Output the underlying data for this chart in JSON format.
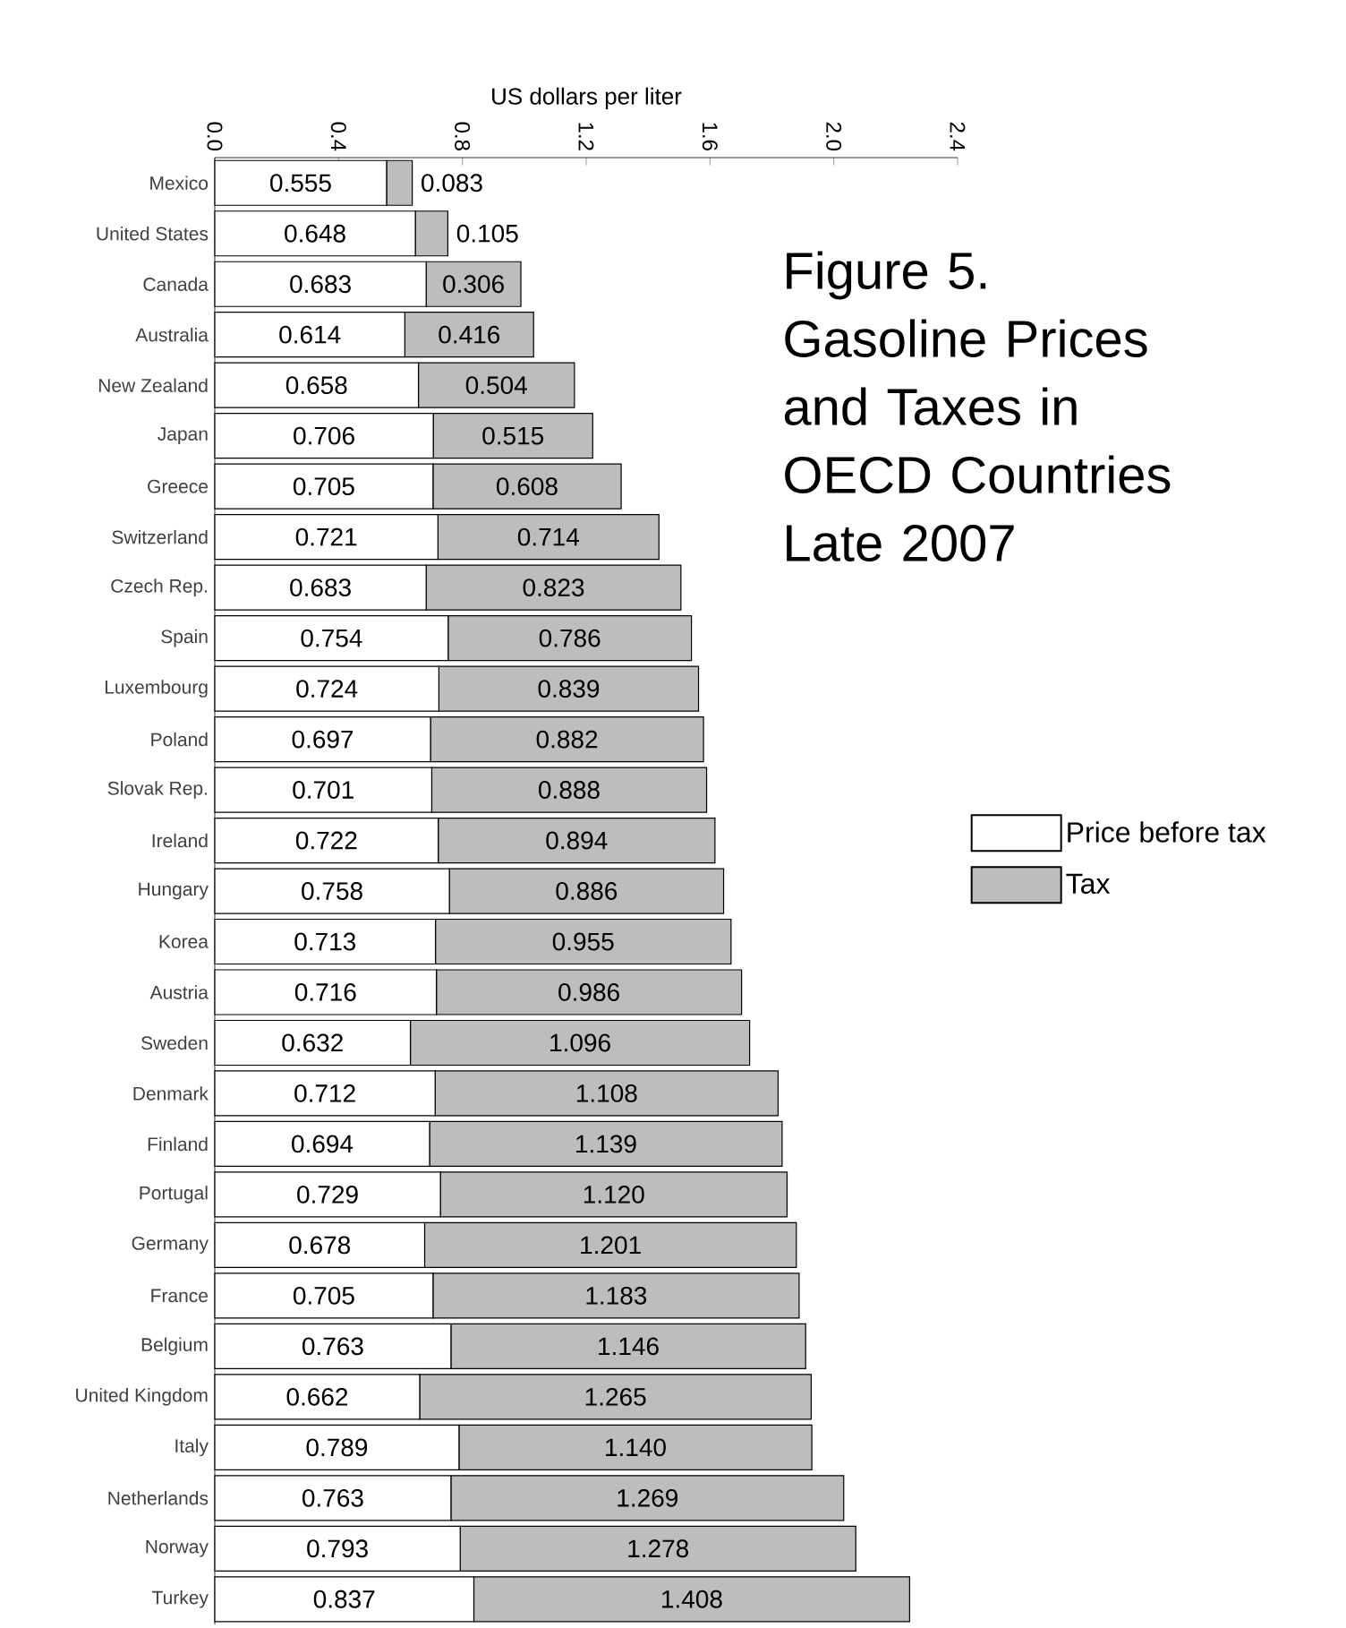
{
  "chart_data": {
    "type": "bar",
    "orientation": "horizontal",
    "stacked": true,
    "legend": "right",
    "title": "Figure 5.",
    "subtitle": "Gasoline Prices and Taxes in OECD Countries Late 2007",
    "xlabel": "US dollars per liter",
    "categories": [
      "Mexico",
      "United States",
      "Canada",
      "Australia",
      "New Zealand",
      "Japan",
      "Greece",
      "Switzerland",
      "Czech Rep.",
      "Spain",
      "Luxembourg",
      "Poland",
      "Slovak Rep.",
      "Ireland",
      "Hungary",
      "Korea",
      "Austria",
      "Sweden",
      "Denmark",
      "Finland",
      "Portugal",
      "Germany",
      "France",
      "Belgium",
      "United Kingdom",
      "Italy",
      "Netherlands",
      "Norway",
      "Turkey"
    ],
    "xlim": [
      0,
      2.4
    ],
    "xticks": [
      {
        "value": 0,
        "label": "0.0"
      },
      0.4,
      0.8,
      1.2,
      1.6,
      {
        "value": 2,
        "label": "2.0"
      },
      2.4
    ],
    "series": [
      {
        "name": "Price before tax",
        "color": "#ffffff",
        "values": [
          0.555,
          0.648,
          0.683,
          0.614,
          0.658,
          0.706,
          0.705,
          0.721,
          0.683,
          0.754,
          0.724,
          0.697,
          0.701,
          0.722,
          0.758,
          0.713,
          0.716,
          0.632,
          0.712,
          0.694,
          0.729,
          0.678,
          0.705,
          0.763,
          0.662,
          0.789,
          0.763,
          0.793,
          0.837
        ],
        "value_labels": [
          "0.555",
          "0.648",
          "0.683",
          "0.614",
          "0.658",
          "0.706",
          "0.705",
          "0.721",
          "0.683",
          "0.754",
          "0.724",
          "0.697",
          "0.701",
          "0.722",
          "0.758",
          "0.713",
          "0.716",
          "0.632",
          "0.712",
          "0.694",
          "0.729",
          "0.678",
          "0.705",
          "0.763",
          "0.662",
          "0.789",
          "0.763",
          "0.793",
          "0.837"
        ]
      },
      {
        "name": "Tax",
        "color": "#bfbcbc",
        "values": [
          0.083,
          0.105,
          0.306,
          0.416,
          0.504,
          0.515,
          0.608,
          0.714,
          0.823,
          0.786,
          0.839,
          0.882,
          0.888,
          0.894,
          0.886,
          0.955,
          0.986,
          1.096,
          1.108,
          1.139,
          1.12,
          1.201,
          1.183,
          1.146,
          1.265,
          1.14,
          1.269,
          1.278,
          1.408
        ],
        "value_labels": [
          "0.083",
          "0.105",
          "0.306",
          "0.416",
          "0.504",
          "0.515",
          "0.608",
          "0.714",
          "0.823",
          "0.786",
          "0.839",
          "0.882",
          "0.888",
          "0.894",
          "0.886",
          "0.955",
          "0.986",
          "1.096",
          "1.108",
          "1.139",
          "1.120",
          "1.201",
          "1.183",
          "1.146",
          "1.265",
          "1.140",
          "1.269",
          "1.278",
          "1.408"
        ]
      }
    ]
  }
}
